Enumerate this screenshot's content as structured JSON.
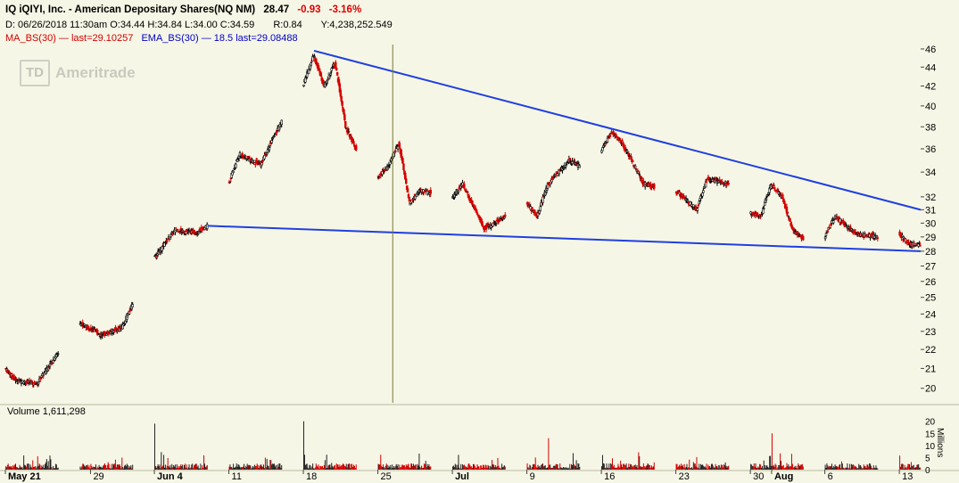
{
  "header": {
    "symbol_name": "IQ iQIYI, Inc. - American Depositary Shares(NQ NM)",
    "last": "28.47",
    "change": "-0.93",
    "change_pct": "-3.16%",
    "bar_info": "D: 06/26/2018  11:30am O:34.44 H:34.84 L:34.00 C:34.59",
    "ratio": "R:0.84",
    "volume_info": "Y:4,238,252.549",
    "ma_study": "MA_BS(30) — last=29.10257",
    "ema_study": "EMA_BS(30) — 18.5 last=29.08488"
  },
  "logo": {
    "mark": "TD",
    "text": "Ameritrade"
  },
  "volume_label": "Volume 1,611,298",
  "volume_unit": "Millions",
  "colors": {
    "background": "#f6f6e6",
    "up_candle": "#000000",
    "down_candle": "#d40000",
    "trendline": "#1f3fe0",
    "cursor": "#7a7a3a",
    "ma": "#d40000",
    "ema": "#0000c8"
  },
  "chart_data": {
    "type": "candlestick",
    "timeframe": "30-minute intraday",
    "ylim": [
      19.3,
      46.5
    ],
    "y_scale": "log",
    "y_ticks": [
      20,
      21,
      22,
      23,
      24,
      25,
      26,
      27,
      28,
      29,
      30,
      31,
      32,
      34,
      36,
      38,
      40,
      42,
      44,
      46
    ],
    "x_tick_labels": [
      "May 21",
      "29",
      "Jun 4",
      "11",
      "18",
      "25",
      "Jul",
      "9",
      "16",
      "23",
      "30",
      "Aug",
      "6",
      "13"
    ],
    "x_tick_dates": [
      "2018-05-21",
      "2018-05-29",
      "2018-06-04",
      "2018-06-11",
      "2018-06-18",
      "2018-06-25",
      "2018-07-02",
      "2018-07-09",
      "2018-07-16",
      "2018-07-23",
      "2018-07-30",
      "2018-08-01",
      "2018-08-06",
      "2018-08-13"
    ],
    "x_range": [
      "2018-05-21",
      "2018-08-14"
    ],
    "path_anchors": [
      {
        "date": "2018-05-21",
        "price": 21.0
      },
      {
        "date": "2018-05-22",
        "price": 20.4
      },
      {
        "date": "2018-05-24",
        "price": 20.2
      },
      {
        "date": "2018-05-25",
        "price": 21.0
      },
      {
        "date": "2018-05-28",
        "price": 23.5
      },
      {
        "date": "2018-05-30",
        "price": 22.8
      },
      {
        "date": "2018-06-01",
        "price": 23.2
      },
      {
        "date": "2018-06-04",
        "price": 27.5
      },
      {
        "date": "2018-06-06",
        "price": 29.5
      },
      {
        "date": "2018-06-08",
        "price": 29.3
      },
      {
        "date": "2018-06-09",
        "price": 29.8
      },
      {
        "date": "2018-06-11",
        "price": 33.0
      },
      {
        "date": "2018-06-12",
        "price": 35.5
      },
      {
        "date": "2018-06-14",
        "price": 34.6
      },
      {
        "date": "2018-06-16",
        "price": 38.5
      },
      {
        "date": "2018-06-18",
        "price": 42.0
      },
      {
        "date": "2018-06-19",
        "price": 45.3
      },
      {
        "date": "2018-06-20",
        "price": 42.0
      },
      {
        "date": "2018-06-21",
        "price": 44.5
      },
      {
        "date": "2018-06-22",
        "price": 38.0
      },
      {
        "date": "2018-06-23",
        "price": 36.0
      },
      {
        "date": "2018-06-24",
        "price": 35.5
      },
      {
        "date": "2018-06-25",
        "price": 33.5
      },
      {
        "date": "2018-06-26",
        "price": 34.5
      },
      {
        "date": "2018-06-27",
        "price": 36.5
      },
      {
        "date": "2018-06-28",
        "price": 31.5
      },
      {
        "date": "2018-06-29",
        "price": 32.5
      },
      {
        "date": "2018-07-02",
        "price": 32.0
      },
      {
        "date": "2018-07-03",
        "price": 33.0
      },
      {
        "date": "2018-07-05",
        "price": 29.6
      },
      {
        "date": "2018-07-06",
        "price": 30.0
      },
      {
        "date": "2018-07-09",
        "price": 31.5
      },
      {
        "date": "2018-07-10",
        "price": 30.5
      },
      {
        "date": "2018-07-11",
        "price": 33.0
      },
      {
        "date": "2018-07-13",
        "price": 35.0
      },
      {
        "date": "2018-07-15",
        "price": 34.0
      },
      {
        "date": "2018-07-17",
        "price": 37.5
      },
      {
        "date": "2018-07-18",
        "price": 36.5
      },
      {
        "date": "2018-07-20",
        "price": 33.0
      },
      {
        "date": "2018-07-23",
        "price": 32.5
      },
      {
        "date": "2018-07-25",
        "price": 31.0
      },
      {
        "date": "2018-07-26",
        "price": 33.5
      },
      {
        "date": "2018-07-28",
        "price": 33.0
      },
      {
        "date": "2018-07-29",
        "price": 31.0
      },
      {
        "date": "2018-07-31",
        "price": 30.5
      },
      {
        "date": "2018-08-01",
        "price": 33.0
      },
      {
        "date": "2018-08-02",
        "price": 32.0
      },
      {
        "date": "2018-08-03",
        "price": 29.5
      },
      {
        "date": "2018-08-05",
        "price": 28.3
      },
      {
        "date": "2018-08-06",
        "price": 29.0
      },
      {
        "date": "2018-08-07",
        "price": 30.5
      },
      {
        "date": "2018-08-09",
        "price": 29.2
      },
      {
        "date": "2018-08-11",
        "price": 29.0
      },
      {
        "date": "2018-08-13",
        "price": 29.2
      },
      {
        "date": "2018-08-14",
        "price": 28.47
      }
    ],
    "trendlines": [
      {
        "name": "upper",
        "from": {
          "date": "2018-06-19",
          "price": 45.8
        },
        "to": {
          "date": "2018-08-14",
          "price": 31.0
        }
      },
      {
        "name": "lower",
        "from": {
          "date": "2018-06-09",
          "price": 29.8
        },
        "to": {
          "date": "2018-08-14",
          "price": 28.0
        }
      }
    ],
    "cursor_date": "2018-06-26",
    "volume": {
      "unit": "Millions",
      "ylim": [
        0,
        21
      ],
      "y_ticks": [
        0,
        5,
        10,
        15,
        20
      ],
      "last": 1611298,
      "notable_bars": [
        {
          "date": "2018-06-04",
          "price_index": 0,
          "value": 19
        },
        {
          "date": "2018-06-18",
          "value": 20
        },
        {
          "date": "2018-07-11",
          "value": 13
        },
        {
          "date": "2018-08-01",
          "value": 15
        }
      ]
    }
  }
}
